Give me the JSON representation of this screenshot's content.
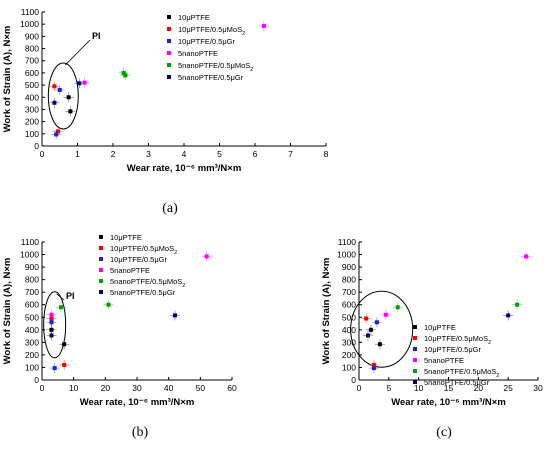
{
  "series_names": [
    "10μPTFE",
    "10μPTFE/0.5μMoS",
    "10μPTFE/0.5μGr",
    "5nanoPTFE",
    "5nanoPTFE/0.5μMoS",
    "5nanoPTFE/0.5μGr"
  ],
  "series_subscripts": [
    "",
    "2",
    "",
    "",
    "2",
    ""
  ],
  "series_colors": [
    "#000000",
    "#ff0000",
    "#1f1fd0",
    "#ff00ff",
    "#00a000",
    "#000080"
  ],
  "chart_data": [
    {
      "type": "scatter",
      "caption": "(a)",
      "annotation": "PI",
      "xlabel": "Wear rate, 10⁻⁶ mm³/N×m",
      "ylabel": "Work of Strain (A), N×m",
      "xlim": [
        0,
        8
      ],
      "ylim": [
        0,
        1100
      ],
      "xticks": [
        0,
        1,
        2,
        3,
        4,
        5,
        6,
        7,
        8
      ],
      "yticks": [
        0,
        100,
        200,
        300,
        400,
        500,
        600,
        700,
        800,
        900,
        1000,
        1100
      ],
      "legend_position": "top-right",
      "series": [
        {
          "points": [
            [
              0.75,
              400
            ],
            [
              0.8,
              285
            ]
          ]
        },
        {
          "points": [
            [
              0.35,
              490
            ],
            [
              0.45,
              120
            ]
          ]
        },
        {
          "points": [
            [
              0.4,
              95
            ],
            [
              0.5,
              460
            ]
          ]
        },
        {
          "points": [
            [
              6.25,
              985
            ],
            [
              1.2,
              520
            ]
          ]
        },
        {
          "points": [
            [
              2.3,
              600
            ],
            [
              2.35,
              580
            ]
          ]
        },
        {
          "points": [
            [
              0.35,
              355
            ],
            [
              1.05,
              515
            ]
          ]
        }
      ]
    },
    {
      "type": "scatter",
      "caption": "(b)",
      "annotation": "PI",
      "xlabel": "Wear rate, 10⁻⁶ mm³/N×m",
      "ylabel": "Work of Strain (A), N×m",
      "xlim": [
        0,
        60
      ],
      "ylim": [
        0,
        1100
      ],
      "xticks": [
        0,
        10,
        20,
        30,
        40,
        50,
        60
      ],
      "yticks": [
        0,
        100,
        200,
        300,
        400,
        500,
        600,
        700,
        800,
        900,
        1000,
        1100
      ],
      "legend_position": "top-left",
      "series": [
        {
          "points": [
            [
              3.0,
              400
            ],
            [
              7.0,
              285
            ]
          ]
        },
        {
          "points": [
            [
              3.0,
              490
            ],
            [
              7.0,
              120
            ]
          ]
        },
        {
          "points": [
            [
              3.0,
              460
            ],
            [
              4.0,
              95
            ]
          ]
        },
        {
          "points": [
            [
              52.0,
              985
            ],
            [
              3.0,
              520
            ]
          ]
        },
        {
          "points": [
            [
              21.0,
              600
            ],
            [
              6.0,
              580
            ]
          ]
        },
        {
          "points": [
            [
              3.0,
              355
            ],
            [
              42.0,
              515
            ]
          ]
        }
      ]
    },
    {
      "type": "scatter",
      "caption": "(c)",
      "xlabel": "Wear rate, 10⁻⁶ mm³/N×m",
      "ylabel": "Work of Strain (A), N×m",
      "xlim": [
        0,
        30
      ],
      "ylim": [
        0,
        1100
      ],
      "xticks": [
        0,
        5,
        10,
        15,
        20,
        25,
        30
      ],
      "yticks": [
        0,
        100,
        200,
        300,
        400,
        500,
        600,
        700,
        800,
        900,
        1000,
        1100
      ],
      "legend_position": "bottom-left",
      "series": [
        {
          "points": [
            [
              2.0,
              400
            ],
            [
              3.5,
              285
            ]
          ]
        },
        {
          "points": [
            [
              1.2,
              490
            ],
            [
              2.5,
              120
            ]
          ]
        },
        {
          "points": [
            [
              2.5,
              95
            ],
            [
              3.0,
              460
            ]
          ]
        },
        {
          "points": [
            [
              28.0,
              985
            ],
            [
              4.5,
              520
            ]
          ]
        },
        {
          "points": [
            [
              26.5,
              600
            ],
            [
              6.5,
              580
            ]
          ]
        },
        {
          "points": [
            [
              1.5,
              355
            ],
            [
              25.0,
              515
            ]
          ]
        }
      ]
    }
  ]
}
